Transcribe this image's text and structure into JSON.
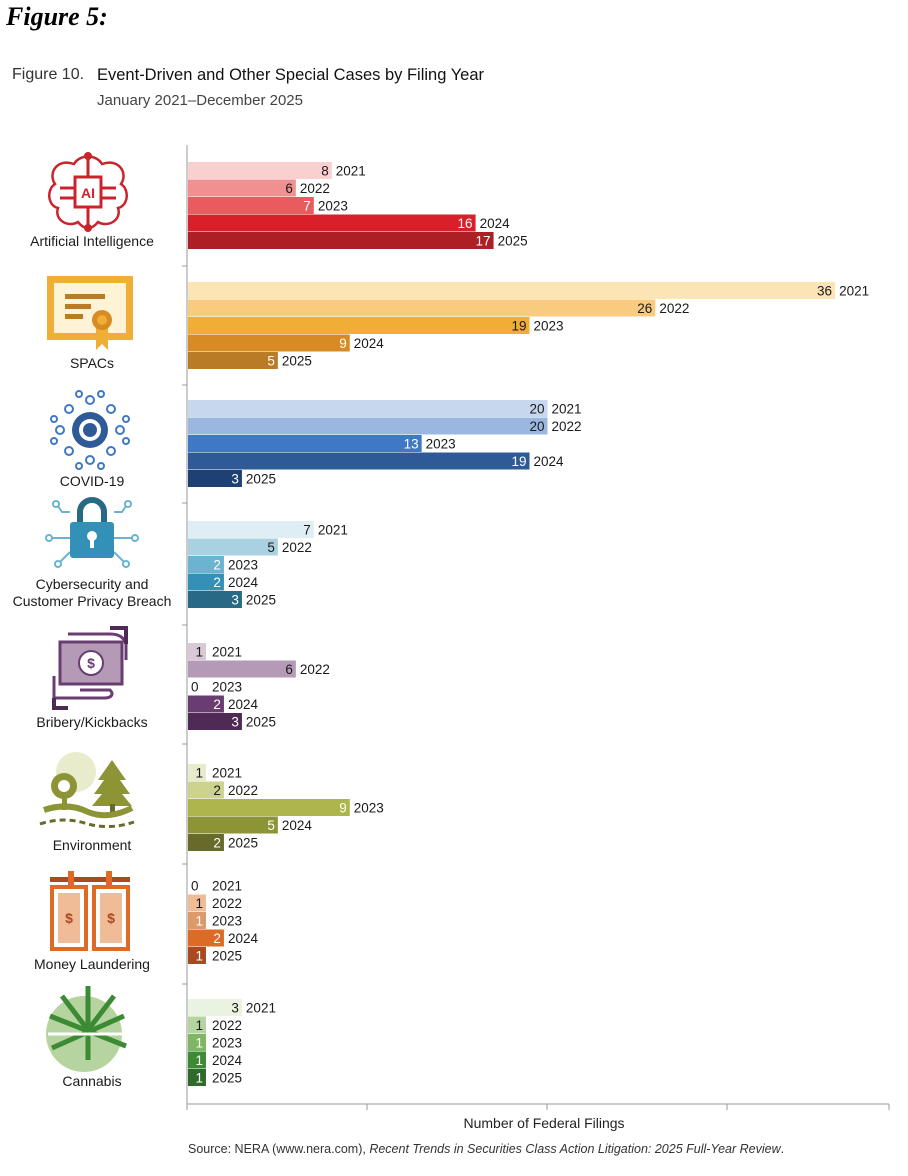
{
  "heading": "Figure 5:",
  "figure_number": "Figure 10.",
  "chart_data": {
    "type": "bar",
    "orientation": "horizontal",
    "title": "Event-Driven and Other Special Cases by Filing Year",
    "subtitle": "January 2021–December 2025",
    "xlabel": "Number of Federal Filings",
    "ylabel": "",
    "xlim": [
      0,
      39
    ],
    "series_names": [
      "2021",
      "2022",
      "2023",
      "2024",
      "2025"
    ],
    "groups": [
      {
        "label": "Artificial Intelligence",
        "icon": "ai-chip-icon",
        "values": [
          8,
          6,
          7,
          16,
          17
        ],
        "colors": [
          "#f9cfd0",
          "#f19091",
          "#ea5b5f",
          "#d91f2a",
          "#ad1f24"
        ]
      },
      {
        "label": "SPACs",
        "icon": "certificate-icon",
        "values": [
          36,
          26,
          19,
          9,
          5
        ],
        "colors": [
          "#fce5b5",
          "#f8cb7e",
          "#f0ae36",
          "#d88b25",
          "#b97b25"
        ]
      },
      {
        "label": "COVID-19",
        "icon": "virus-icon",
        "values": [
          20,
          20,
          13,
          19,
          3
        ],
        "colors": [
          "#c6d7ee",
          "#9ab7df",
          "#3f79c5",
          "#2e5b97",
          "#1c4172"
        ]
      },
      {
        "label": "Cybersecurity and\nCustomer Privacy Breach",
        "icon": "padlock-icon",
        "values": [
          7,
          5,
          2,
          2,
          3
        ],
        "colors": [
          "#dfeef5",
          "#a9d1e2",
          "#6bb3d1",
          "#3390b6",
          "#286a86"
        ]
      },
      {
        "label": "Bribery/Kickbacks",
        "icon": "money-exchange-icon",
        "values": [
          1,
          6,
          0,
          2,
          3
        ],
        "colors": [
          "#d9c8d7",
          "#b59ab7",
          "#8d6692",
          "#6a3d72",
          "#4f2a57"
        ]
      },
      {
        "label": "Environment",
        "icon": "trees-icon",
        "values": [
          1,
          2,
          9,
          5,
          2
        ],
        "colors": [
          "#e8ebcc",
          "#cdd38e",
          "#adb54c",
          "#8d9436",
          "#676a2a"
        ]
      },
      {
        "label": "Money Laundering",
        "icon": "hanging-bills-icon",
        "values": [
          0,
          1,
          1,
          2,
          1
        ],
        "colors": [
          "#f8dcc8",
          "#f0bc98",
          "#dc9a6b",
          "#dd6b26",
          "#a74a22"
        ]
      },
      {
        "label": "Cannabis",
        "icon": "cannabis-icon",
        "values": [
          3,
          1,
          1,
          1,
          1
        ],
        "colors": [
          "#eaf2e2",
          "#b5d49f",
          "#7fb563",
          "#3d8a35",
          "#2f6a2b"
        ]
      }
    ]
  },
  "source": {
    "prefix": "Source: NERA (www.nera.com), ",
    "italic": "Recent Trends in Securities Class Action Litigation: 2025 Full-Year Review",
    "suffix": "."
  }
}
